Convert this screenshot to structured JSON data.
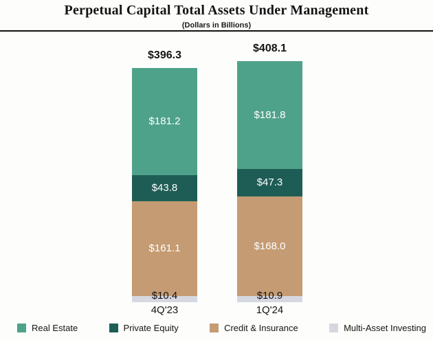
{
  "header": {
    "title": "Perpetual Capital Total Assets Under Management",
    "subtitle": "(Dollars in Billions)"
  },
  "chart_data": {
    "type": "bar",
    "stacked": true,
    "title": "Perpetual Capital Total Assets Under Management",
    "subtitle": "(Dollars in Billions)",
    "categories": [
      "4Q'23",
      "1Q'24"
    ],
    "totals": [
      396.3,
      408.1
    ],
    "total_labels": [
      "$396.3",
      "$408.1"
    ],
    "series": [
      {
        "name": "Multi-Asset Investing",
        "color": "#D5D8E0",
        "values": [
          10.4,
          10.9
        ],
        "value_labels": [
          "$10.4",
          "$10.9"
        ],
        "label_color": "#141414"
      },
      {
        "name": "Credit & Insurance",
        "color": "#C49B72",
        "values": [
          161.1,
          168.0
        ],
        "value_labels": [
          "$161.1",
          "$168.0"
        ],
        "label_color": "#ffffff"
      },
      {
        "name": "Private Equity",
        "color": "#1E5D56",
        "values": [
          43.8,
          47.3
        ],
        "value_labels": [
          "$43.8",
          "$47.3"
        ],
        "label_color": "#ffffff"
      },
      {
        "name": "Real Estate",
        "color": "#4FA28A",
        "values": [
          181.2,
          181.8
        ],
        "value_labels": [
          "$181.2",
          "$181.8"
        ],
        "label_color": "#ffffff"
      }
    ],
    "legend": [
      {
        "label": "Real Estate",
        "color": "#4FA28A"
      },
      {
        "label": "Private Equity",
        "color": "#1E5D56"
      },
      {
        "label": "Credit & Insurance",
        "color": "#C49B72"
      },
      {
        "label": "Multi-Asset Investing",
        "color": "#D5D8E0"
      }
    ],
    "legend_position": "bottom",
    "grid": false,
    "ylim": [
      0,
      420
    ]
  }
}
